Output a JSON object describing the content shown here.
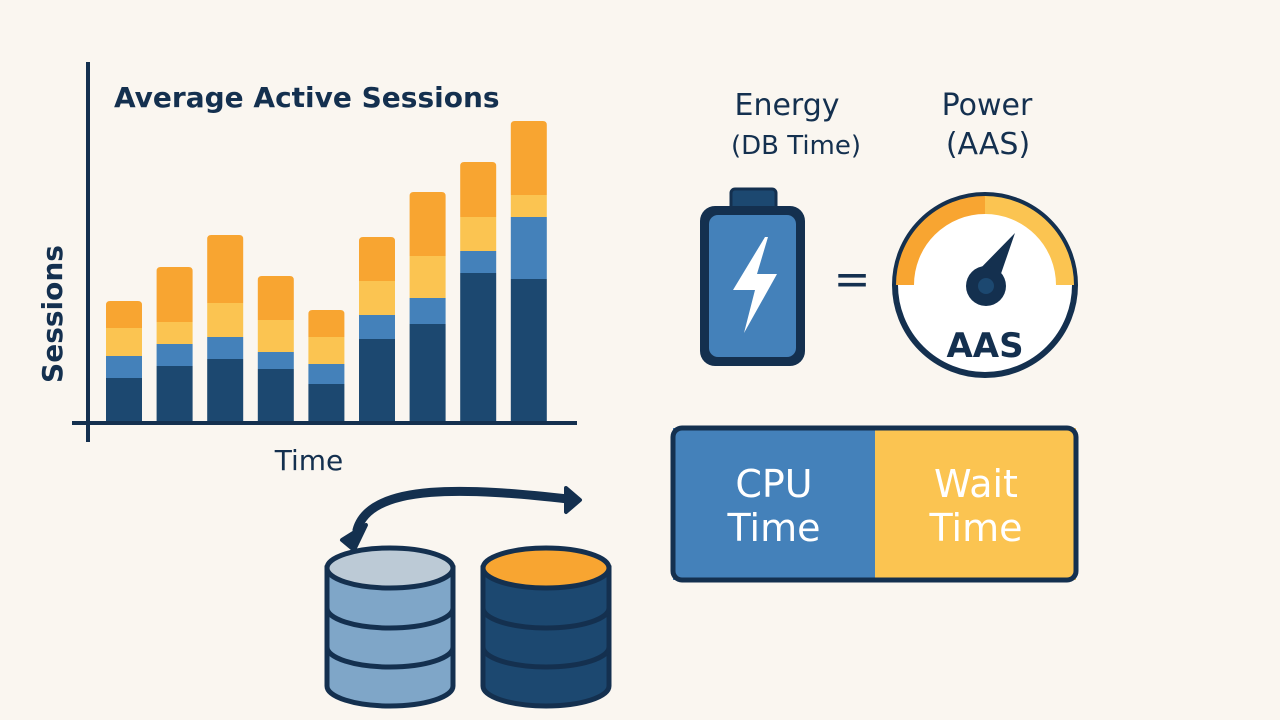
{
  "chart_data": {
    "type": "bar",
    "stacked": true,
    "title": "Average Active Sessions",
    "xlabel": "Time",
    "ylabel": "Sessions",
    "axis_tick_labels": false,
    "categories": [
      "",
      "",
      "",
      "",
      "",
      "",
      "",
      "",
      ""
    ],
    "series": [
      {
        "values": [
          43,
          55,
          62,
          52,
          37,
          82,
          97,
          148,
          142
        ]
      },
      {
        "values": [
          22,
          22,
          22,
          17,
          20,
          24,
          26,
          22,
          62
        ]
      },
      {
        "values": [
          28,
          22,
          34,
          32,
          27,
          34,
          42,
          34,
          22
        ]
      },
      {
        "values": [
          27,
          55,
          68,
          44,
          27,
          44,
          64,
          55,
          74
        ]
      }
    ],
    "colors": [
      "#1c4870",
      "#4481ba",
      "#fbc451",
      "#f8a531"
    ],
    "ylim": [
      0,
      300
    ]
  },
  "energy": {
    "title": "Energy",
    "subtitle": "(DB Time)"
  },
  "power": {
    "title": "Power",
    "subtitle": "(AAS)",
    "gauge_label": "AAS"
  },
  "equals": "=",
  "db_time_bar": {
    "cpu_line1": "CPU",
    "cpu_line2": "Time",
    "wait_line1": "Wait",
    "wait_line2": "Time"
  },
  "palette": {
    "navy": "#14304f",
    "dark_blue": "#1c4870",
    "blue": "#4481ba",
    "yellow": "#fbc451",
    "orange": "#f8a531",
    "light_blue": "#7fa6c8",
    "background": "#faf6f0"
  },
  "icons": [
    "battery-icon",
    "lightning-bolt-icon",
    "gauge-icon",
    "database-icon",
    "swap-arrow-icon"
  ]
}
